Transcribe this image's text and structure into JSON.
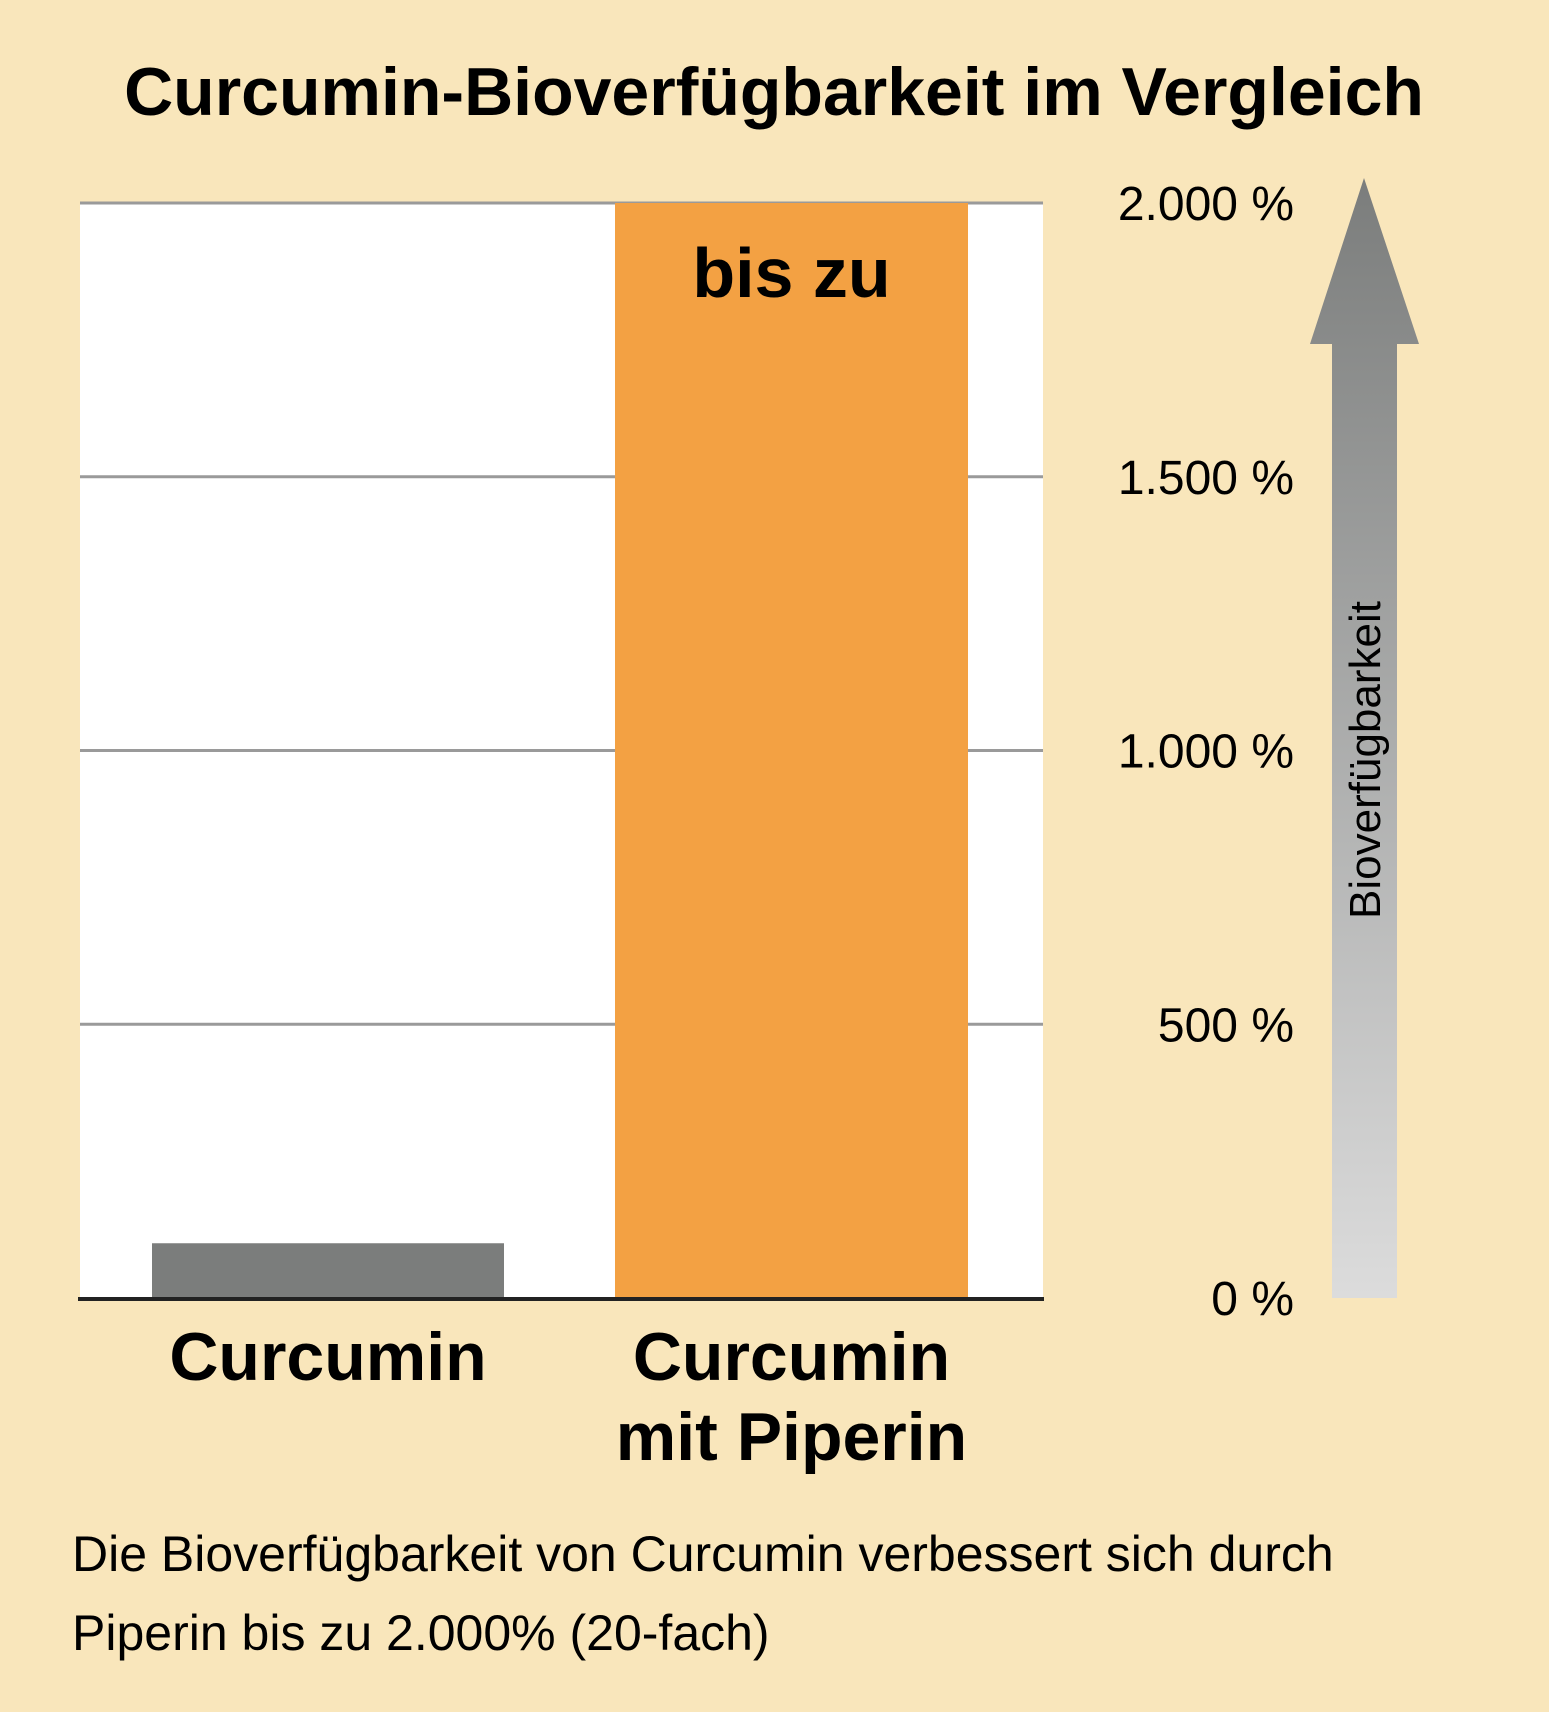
{
  "chart_data": {
    "type": "bar",
    "title": "Curcumin-Bioverfügbarkeit im Vergleich",
    "categories": [
      [
        "Curcumin"
      ],
      [
        "Curcumin",
        "mit Piperin"
      ]
    ],
    "values": [
      100,
      2000
    ],
    "bar_colors": [
      "#7b7d7c",
      "#f3a143"
    ],
    "bar_annotation": "bis zu",
    "ylabel": "Bioverfügbarkeit",
    "ylim": [
      0,
      2000
    ],
    "y_ticks": [
      0,
      500,
      1000,
      1500,
      2000
    ],
    "y_tick_labels": [
      "0 %",
      "500 %",
      "1.000 %",
      "1.500 %",
      "2.000 %"
    ],
    "y_axis_side": "right",
    "grid": true,
    "caption": [
      "Die Bioverfügbarkeit von Curcumin verbessert sich durch",
      "Piperin bis zu 2.000% (20-fach)"
    ]
  },
  "colors": {
    "background": "#f9e6bb",
    "plot": "#ffffff",
    "grid": "#9a9a9a",
    "arrow_top": "#7b7d7c",
    "arrow_bottom": "#dcdcdc"
  }
}
